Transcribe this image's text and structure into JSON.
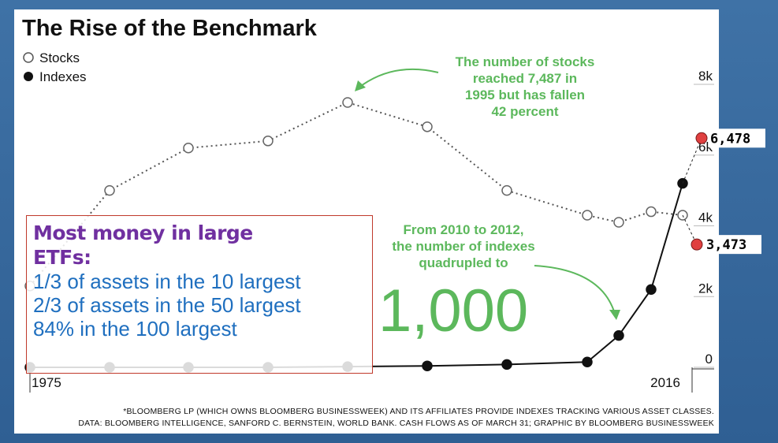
{
  "chart_data": {
    "type": "line",
    "title": "The Rise of the Benchmark",
    "x_start_label": "1975",
    "x_end_label": "2016",
    "y_ticks": [
      "8k",
      "6k",
      "4k",
      "2k",
      "0"
    ],
    "ylim": [
      0,
      8000
    ],
    "grid": true,
    "legend_position": "top-left",
    "series": [
      {
        "name": "Stocks",
        "marker": "hollow-circle",
        "line_style": "dotted",
        "values": [
          2300,
          5000,
          6200,
          6400,
          7487,
          6800,
          5000,
          4300,
          4100,
          4400,
          4300
        ]
      },
      {
        "name": "Indexes",
        "marker": "filled-circle",
        "line_style": "solid",
        "values": [
          0,
          0,
          0,
          0,
          20,
          40,
          80,
          150,
          900,
          2200,
          5200
        ]
      }
    ],
    "annotations": {
      "stocks_note": [
        "The number of stocks",
        "reached 7,487 in",
        "1995 but has fallen",
        "42 percent"
      ],
      "indexes_note": [
        "From 2010 to 2012,",
        "the number of indexes",
        "quadrupled to"
      ],
      "big_number": "1,000"
    },
    "callouts": [
      {
        "label": "6,478",
        "value": 6478,
        "color": "#e04040"
      },
      {
        "label": "3,473",
        "value": 3473,
        "color": "#e04040"
      }
    ],
    "footnote": [
      "*BLOOMBERG LP (WHICH OWNS BLOOMBERG BUSINESSWEEK) AND ITS AFFILIATES PROVIDE INDEXES TRACKING VARIOUS ASSET CLASSES.",
      "DATA: BLOOMBERG INTELLIGENCE, SANFORD C. BERNSTEIN, WORLD BANK. CASH FLOWS AS OF MARCH 31; GRAPHIC  BY BLOOMBERG BUSINESSWEEK"
    ],
    "colors": {
      "annotation_green": "#5cb85c",
      "series_black": "#111111",
      "callout_red": "#e04040"
    }
  },
  "note_box": {
    "heading_line1": "Most money in large",
    "heading_line2": "ETFs:",
    "lines": [
      "1/3 of assets in the 10 largest",
      "2/3 of assets in the 50 largest",
      "84% in the 100 largest"
    ]
  }
}
